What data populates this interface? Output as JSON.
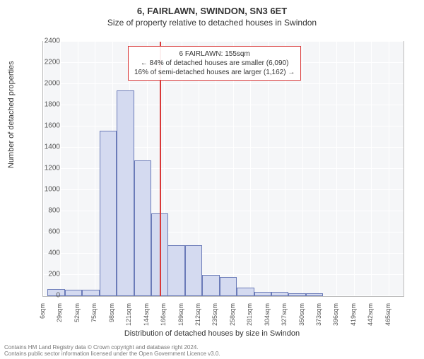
{
  "title_main": "6, FAIRLAWN, SWINDON, SN3 6ET",
  "title_sub": "Size of property relative to detached houses in Swindon",
  "ylabel": "Number of detached properties",
  "xlabel": "Distribution of detached houses by size in Swindon",
  "footer_line1": "Contains HM Land Registry data © Crown copyright and database right 2024.",
  "footer_line2": "Contains public sector information licensed under the Open Government Licence v3.0.",
  "annotation": {
    "line1": "6 FAIRLAWN: 155sqm",
    "line2": "← 84% of detached houses are smaller (6,090)",
    "line3": "16% of semi-detached houses are larger (1,162) →"
  },
  "chart": {
    "type": "histogram",
    "background_color": "#f5f6f8",
    "grid_color": "#ffffff",
    "bar_fill": "#d4daf0",
    "bar_border": "#6b7bb8",
    "marker_color": "#d93838",
    "marker_value": 155,
    "xlim": [
      0,
      480
    ],
    "ylim": [
      0,
      2400
    ],
    "ytick_step": 200,
    "xtick_step": 23,
    "xtick_labels": [
      "6sqm",
      "29sqm",
      "52sqm",
      "75sqm",
      "98sqm",
      "121sqm",
      "144sqm",
      "166sqm",
      "189sqm",
      "212sqm",
      "235sqm",
      "258sqm",
      "281sqm",
      "304sqm",
      "327sqm",
      "350sqm",
      "373sqm",
      "396sqm",
      "419sqm",
      "442sqm",
      "465sqm"
    ],
    "bins": [
      {
        "x": 6,
        "count": 70
      },
      {
        "x": 29,
        "count": 60
      },
      {
        "x": 52,
        "count": 60
      },
      {
        "x": 75,
        "count": 1560
      },
      {
        "x": 98,
        "count": 1940
      },
      {
        "x": 121,
        "count": 1280
      },
      {
        "x": 144,
        "count": 780
      },
      {
        "x": 166,
        "count": 480
      },
      {
        "x": 189,
        "count": 480
      },
      {
        "x": 212,
        "count": 200
      },
      {
        "x": 235,
        "count": 180
      },
      {
        "x": 258,
        "count": 80
      },
      {
        "x": 281,
        "count": 40
      },
      {
        "x": 304,
        "count": 40
      },
      {
        "x": 327,
        "count": 30
      },
      {
        "x": 350,
        "count": 30
      },
      {
        "x": 373,
        "count": 0
      },
      {
        "x": 396,
        "count": 0
      },
      {
        "x": 419,
        "count": 0
      },
      {
        "x": 442,
        "count": 0
      }
    ],
    "title_fontsize": 13,
    "sub_fontsize": 12,
    "label_fontsize": 11,
    "tick_fontsize": 10
  }
}
